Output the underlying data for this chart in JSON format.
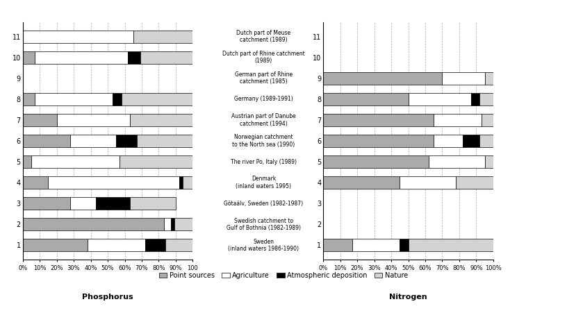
{
  "categories": [
    "Sweden\n(inland waters 1986-1990)",
    "Swedish catchment to\nGulf of Bothnia (1982-1989)",
    "Götaälv, Sweden (1982-1987)",
    "Denmark\n(inland waters 1995)",
    "The river Po, Italy (1989)",
    "Norwegian catchment\nto the North sea (1990)",
    "Austrian part of Danube\ncatchment (1994)",
    "Germany (1989-1991)",
    "German part of Rhine\ncatchment (1985)",
    "Dutch part of Rhine catchment\n(1989)",
    "Dutch part of Meuse\ncatchment (1989)"
  ],
  "phosphorus": {
    "point_sources": [
      38,
      83,
      28,
      15,
      5,
      28,
      20,
      7,
      0,
      7,
      0
    ],
    "agriculture": [
      34,
      4,
      15,
      77,
      52,
      27,
      43,
      46,
      0,
      55,
      65
    ],
    "atm_deposition": [
      12,
      2,
      20,
      2,
      0,
      12,
      0,
      5,
      0,
      7,
      0
    ],
    "nature": [
      16,
      11,
      27,
      6,
      43,
      33,
      37,
      42,
      0,
      31,
      35
    ]
  },
  "nitrogen": {
    "point_sources": [
      17,
      0,
      0,
      45,
      62,
      65,
      65,
      50,
      70,
      0,
      0
    ],
    "agriculture": [
      28,
      0,
      0,
      33,
      33,
      17,
      28,
      37,
      25,
      0,
      0
    ],
    "atm_deposition": [
      5,
      0,
      0,
      0,
      0,
      10,
      0,
      5,
      0,
      0,
      0
    ],
    "nature": [
      50,
      0,
      0,
      22,
      5,
      8,
      7,
      8,
      5,
      0,
      0
    ]
  },
  "colors": {
    "point_sources": "#aaaaaa",
    "agriculture": "#ffffff",
    "atm_deposition": "#000000",
    "nature": "#d3d3d3"
  },
  "title_phosphorus": "Phosphorus",
  "title_nitrogen": "Nitrogen",
  "legend_labels": [
    "Point sources",
    "Agriculture",
    "Atmospheric deposition",
    "Nature"
  ],
  "phosphorus_xticks": [
    0,
    10,
    20,
    30,
    40,
    50,
    60,
    70,
    80,
    90,
    100
  ],
  "phosphorus_xticklabels": [
    "0%",
    "10%",
    "20%",
    "30%",
    "40%",
    "50%",
    "60%",
    "70%",
    "80%",
    "90%",
    "100"
  ],
  "nitrogen_xticklabels": [
    "0%",
    "10%",
    "20%",
    "30%",
    "40%",
    "50%",
    "60%",
    "70%",
    "80%",
    "90%",
    "100%"
  ]
}
